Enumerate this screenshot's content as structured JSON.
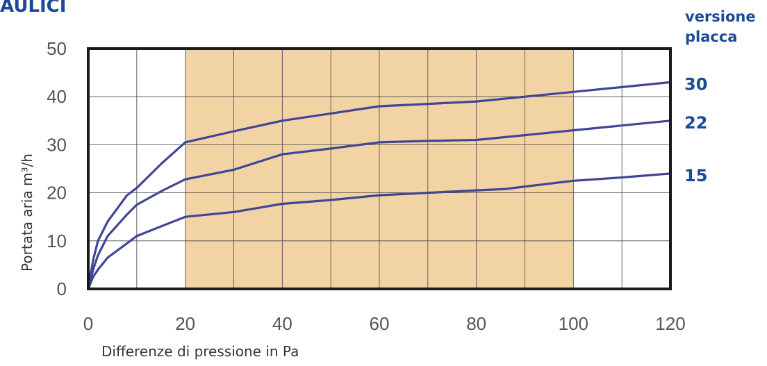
{
  "header": {
    "title": "AULICI"
  },
  "legend": {
    "title_line1": "versione",
    "title_line2": "placca"
  },
  "chart_data": {
    "type": "line",
    "title": "",
    "xlabel": "Differenze di pressione in Pa",
    "ylabel": "Portata aria m³/h",
    "xlim": [
      0,
      120
    ],
    "ylim": [
      0,
      50
    ],
    "x_ticks": [
      "0",
      "20",
      "40",
      "60",
      "80",
      "100",
      "120"
    ],
    "y_ticks": [
      "0",
      "10",
      "20",
      "30",
      "40",
      "50"
    ],
    "grid": true,
    "highlight_range": [
      20,
      100
    ],
    "colors": {
      "line": "#3f4597",
      "highlight": "#f2d3a4",
      "grid": "#444444",
      "frame": "#1a1a1a",
      "label": "#1c4a99"
    },
    "series": [
      {
        "name": "30",
        "points": [
          [
            0,
            0
          ],
          [
            1,
            6
          ],
          [
            2,
            10
          ],
          [
            4,
            14
          ],
          [
            8,
            19.5
          ],
          [
            10,
            21
          ],
          [
            15,
            26
          ],
          [
            20,
            30.5
          ],
          [
            30,
            32.8
          ],
          [
            40,
            35
          ],
          [
            50,
            36.5
          ],
          [
            60,
            38
          ],
          [
            70,
            38.5
          ],
          [
            80,
            39
          ],
          [
            90,
            40
          ],
          [
            100,
            41
          ],
          [
            110,
            42
          ],
          [
            120,
            43
          ]
        ]
      },
      {
        "name": "22",
        "points": [
          [
            0,
            0
          ],
          [
            1,
            4
          ],
          [
            2,
            7
          ],
          [
            4,
            11
          ],
          [
            8,
            15.5
          ],
          [
            10,
            17.5
          ],
          [
            15,
            20.3
          ],
          [
            20,
            22.8
          ],
          [
            30,
            24.8
          ],
          [
            40,
            28
          ],
          [
            50,
            29.2
          ],
          [
            60,
            30.5
          ],
          [
            70,
            30.8
          ],
          [
            80,
            31
          ],
          [
            90,
            32
          ],
          [
            100,
            33
          ],
          [
            110,
            34
          ],
          [
            120,
            35
          ]
        ]
      },
      {
        "name": "15",
        "points": [
          [
            0,
            0
          ],
          [
            1,
            2.5
          ],
          [
            2,
            4
          ],
          [
            4,
            6.5
          ],
          [
            8,
            9.5
          ],
          [
            10,
            11
          ],
          [
            15,
            13
          ],
          [
            20,
            15
          ],
          [
            30,
            16
          ],
          [
            40,
            17.7
          ],
          [
            50,
            18.5
          ],
          [
            60,
            19.5
          ],
          [
            70,
            20
          ],
          [
            80,
            20.5
          ],
          [
            86,
            20.8
          ],
          [
            90,
            21.3
          ],
          [
            100,
            22.5
          ],
          [
            110,
            23.2
          ],
          [
            120,
            24
          ]
        ]
      }
    ]
  }
}
